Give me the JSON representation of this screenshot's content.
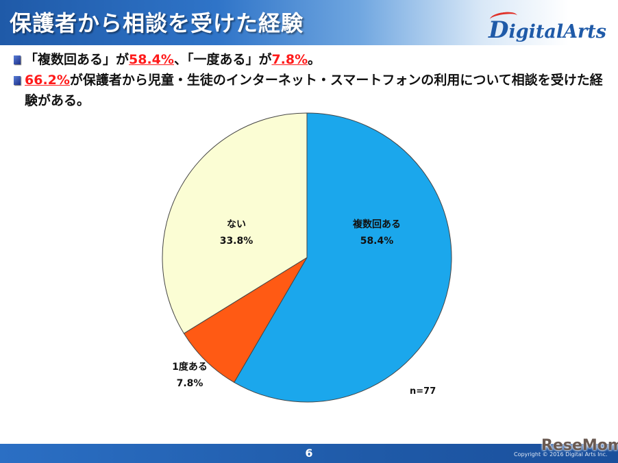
{
  "header": {
    "title": "保護者から相談を受けた経験",
    "logo_text_main": "igitalArts",
    "logo_text_initial": "D"
  },
  "bullets": [
    {
      "parts": [
        "「複数回ある」が",
        "58.4%",
        "、「一度ある」が",
        "7.8%",
        "。"
      ]
    },
    {
      "parts": [
        "66.2%",
        "が保護者から児童・生徒のインターネット・スマートフォンの利用について相談を受けた経験がある。"
      ]
    }
  ],
  "chart_data": {
    "type": "pie",
    "slices": [
      {
        "label": "複数回ある",
        "value": 58.4,
        "value_label": "58.4%",
        "color": "#1ba7ec"
      },
      {
        "label": "1度ある",
        "value": 7.8,
        "value_label": "7.8%",
        "color": "#ff5a14"
      },
      {
        "label": "ない",
        "value": 33.8,
        "value_label": "33.8%",
        "color": "#fbfdd4"
      }
    ],
    "start_angle_deg": 0,
    "direction": "clockwise",
    "annotation": "n=77"
  },
  "footer": {
    "page_number": "6",
    "copyright": "Copyright © 2016 Digital Arts Inc."
  },
  "watermark": "ReseMom"
}
